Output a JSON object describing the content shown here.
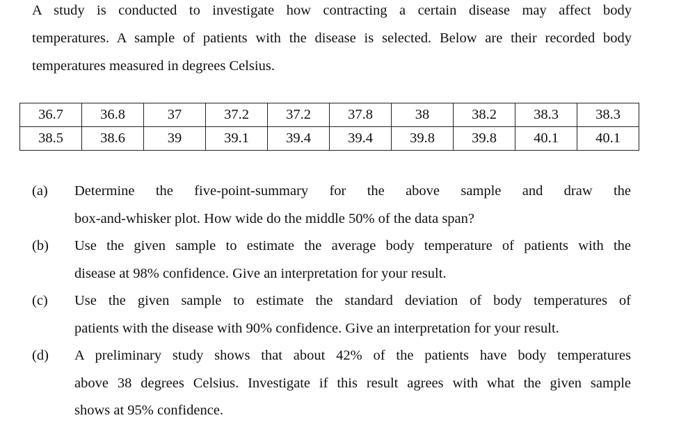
{
  "intro": {
    "lines": [
      "A study is conducted to investigate how contracting a certain disease may affect body",
      "temperatures. A sample of patients with the disease is selected. Below are their recorded body",
      "temperatures measured in degrees Celsius."
    ]
  },
  "table": {
    "rows": [
      [
        "36.7",
        "36.8",
        "37",
        "37.2",
        "37.2",
        "37.8",
        "38",
        "38.2",
        "38.3",
        "38.3"
      ],
      [
        "38.5",
        "38.6",
        "39",
        "39.1",
        "39.4",
        "39.4",
        "39.8",
        "39.8",
        "40.1",
        "40.1"
      ]
    ]
  },
  "questions": [
    {
      "label": "(a)",
      "lines": [
        "Determine the five-point-summary for the above sample and draw the",
        "box-and-whisker plot. How wide do the middle 50% of the data span?"
      ]
    },
    {
      "label": "(b)",
      "lines": [
        "Use the given sample to estimate the average body temperature of patients with the",
        "disease at 98% confidence. Give an interpretation for your result."
      ]
    },
    {
      "label": "(c)",
      "lines": [
        "Use the given sample to estimate the standard deviation of body temperatures of",
        "patients with the disease with 90% confidence. Give an interpretation for your result."
      ]
    },
    {
      "label": "(d)",
      "lines": [
        "A preliminary study shows that about 42% of the patients have body temperatures",
        "above 38 degrees Celsius. Investigate if this result agrees with what the given sample",
        "shows at 95% confidence."
      ]
    }
  ]
}
